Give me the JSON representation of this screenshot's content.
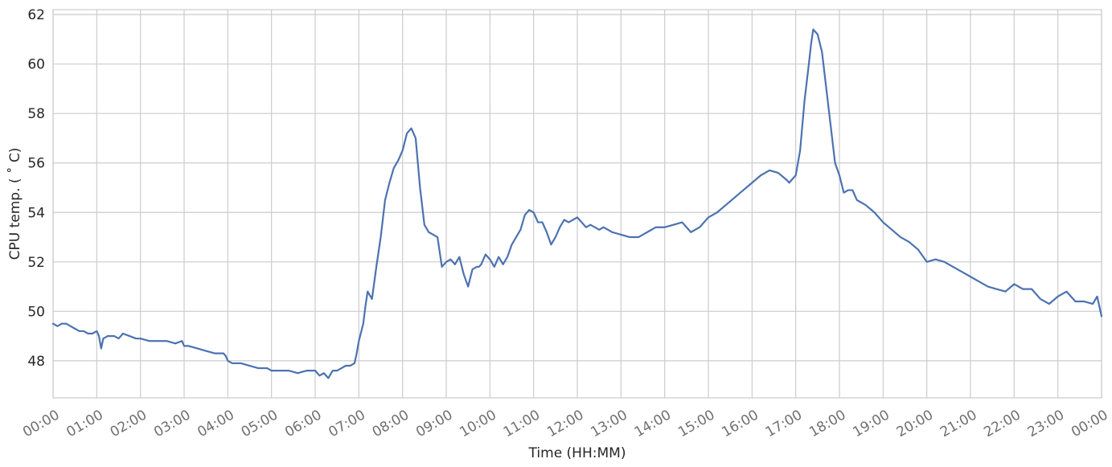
{
  "chart_data": {
    "type": "line",
    "title": "",
    "xlabel": "Time (HH:MM)",
    "ylabel": "CPU temp. ( ˚ C)",
    "xlim": [
      0,
      24
    ],
    "ylim": [
      46.5,
      62.2
    ],
    "x_ticks": [
      0,
      1,
      2,
      3,
      4,
      5,
      6,
      7,
      8,
      9,
      10,
      11,
      12,
      13,
      14,
      15,
      16,
      17,
      18,
      19,
      20,
      21,
      22,
      23,
      24
    ],
    "x_tick_labels": [
      "00:00",
      "01:00",
      "02:00",
      "03:00",
      "04:00",
      "05:00",
      "06:00",
      "07:00",
      "08:00",
      "09:00",
      "10:00",
      "11:00",
      "12:00",
      "13:00",
      "14:00",
      "15:00",
      "16:00",
      "17:00",
      "18:00",
      "19:00",
      "20:00",
      "21:00",
      "22:00",
      "23:00",
      "00:00"
    ],
    "y_ticks": [
      48,
      50,
      52,
      54,
      56,
      58,
      60,
      62
    ],
    "y_tick_labels": [
      "48",
      "50",
      "52",
      "54",
      "56",
      "58",
      "60",
      "62"
    ],
    "grid": true,
    "series": [
      {
        "color": "#4c72b0",
        "x": [
          0.0,
          0.1,
          0.2,
          0.3,
          0.4,
          0.5,
          0.6,
          0.7,
          0.8,
          0.9,
          1.0,
          1.05,
          1.1,
          1.15,
          1.25,
          1.4,
          1.5,
          1.6,
          1.75,
          1.9,
          2.0,
          2.2,
          2.4,
          2.6,
          2.8,
          2.95,
          3.0,
          3.1,
          3.3,
          3.5,
          3.7,
          3.9,
          3.95,
          4.0,
          4.1,
          4.3,
          4.5,
          4.7,
          4.9,
          5.0,
          5.2,
          5.4,
          5.6,
          5.8,
          6.0,
          6.1,
          6.2,
          6.3,
          6.4,
          6.5,
          6.6,
          6.7,
          6.8,
          6.9,
          6.95,
          7.0,
          7.1,
          7.15,
          7.2,
          7.3,
          7.4,
          7.5,
          7.6,
          7.7,
          7.8,
          7.9,
          8.0,
          8.1,
          8.2,
          8.3,
          8.4,
          8.5,
          8.6,
          8.7,
          8.8,
          8.9,
          9.0,
          9.1,
          9.2,
          9.3,
          9.4,
          9.5,
          9.6,
          9.7,
          9.75,
          9.8,
          9.9,
          10.0,
          10.1,
          10.2,
          10.3,
          10.4,
          10.5,
          10.6,
          10.7,
          10.8,
          10.9,
          11.0,
          11.1,
          11.2,
          11.3,
          11.4,
          11.5,
          11.6,
          11.7,
          11.8,
          11.9,
          12.0,
          12.1,
          12.2,
          12.3,
          12.4,
          12.5,
          12.6,
          12.8,
          13.0,
          13.2,
          13.4,
          13.6,
          13.8,
          14.0,
          14.2,
          14.4,
          14.6,
          14.8,
          15.0,
          15.2,
          15.4,
          15.6,
          15.8,
          16.0,
          16.2,
          16.4,
          16.6,
          16.8,
          16.85,
          16.9,
          17.0,
          17.1,
          17.2,
          17.3,
          17.35,
          17.4,
          17.5,
          17.6,
          17.7,
          17.8,
          17.9,
          18.0,
          18.1,
          18.2,
          18.3,
          18.4,
          18.6,
          18.8,
          19.0,
          19.2,
          19.4,
          19.6,
          19.8,
          20.0,
          20.2,
          20.4,
          20.6,
          20.8,
          21.0,
          21.2,
          21.4,
          21.6,
          21.8,
          22.0,
          22.2,
          22.4,
          22.6,
          22.8,
          23.0,
          23.2,
          23.4,
          23.6,
          23.8,
          23.9,
          24.0
        ],
        "y": [
          49.5,
          49.4,
          49.5,
          49.5,
          49.4,
          49.3,
          49.2,
          49.2,
          49.1,
          49.1,
          49.2,
          49.0,
          48.5,
          48.9,
          49.0,
          49.0,
          48.9,
          49.1,
          49.0,
          48.9,
          48.9,
          48.8,
          48.8,
          48.8,
          48.7,
          48.8,
          48.6,
          48.6,
          48.5,
          48.4,
          48.3,
          48.3,
          48.2,
          48.0,
          47.9,
          47.9,
          47.8,
          47.7,
          47.7,
          47.6,
          47.6,
          47.6,
          47.5,
          47.6,
          47.6,
          47.4,
          47.5,
          47.3,
          47.6,
          47.6,
          47.7,
          47.8,
          47.8,
          47.9,
          48.3,
          48.8,
          49.5,
          50.2,
          50.8,
          50.5,
          51.8,
          53.0,
          54.5,
          55.2,
          55.8,
          56.1,
          56.5,
          57.2,
          57.4,
          57.0,
          55.0,
          53.5,
          53.2,
          53.1,
          53.0,
          51.8,
          52.0,
          52.1,
          51.9,
          52.2,
          51.5,
          51.0,
          51.7,
          51.8,
          51.8,
          51.9,
          52.3,
          52.1,
          51.8,
          52.2,
          51.9,
          52.2,
          52.7,
          53.0,
          53.3,
          53.9,
          54.1,
          54.0,
          53.6,
          53.6,
          53.2,
          52.7,
          53.0,
          53.4,
          53.7,
          53.6,
          53.7,
          53.8,
          53.6,
          53.4,
          53.5,
          53.4,
          53.3,
          53.4,
          53.2,
          53.1,
          53.0,
          53.0,
          53.2,
          53.4,
          53.4,
          53.5,
          53.6,
          53.2,
          53.4,
          53.8,
          54.0,
          54.3,
          54.6,
          54.9,
          55.2,
          55.5,
          55.7,
          55.6,
          55.3,
          55.2,
          55.3,
          55.5,
          56.5,
          58.5,
          60.0,
          60.8,
          61.4,
          61.2,
          60.5,
          59.0,
          57.5,
          56.0,
          55.5,
          54.8,
          54.9,
          54.9,
          54.5,
          54.3,
          54.0,
          53.6,
          53.3,
          53.0,
          52.8,
          52.5,
          52.0,
          52.1,
          52.0,
          51.8,
          51.6,
          51.4,
          51.2,
          51.0,
          50.9,
          50.8,
          51.1,
          50.9,
          50.9,
          50.5,
          50.3,
          50.6,
          50.8,
          50.4,
          50.4,
          50.3,
          50.6,
          49.8
        ]
      }
    ]
  }
}
